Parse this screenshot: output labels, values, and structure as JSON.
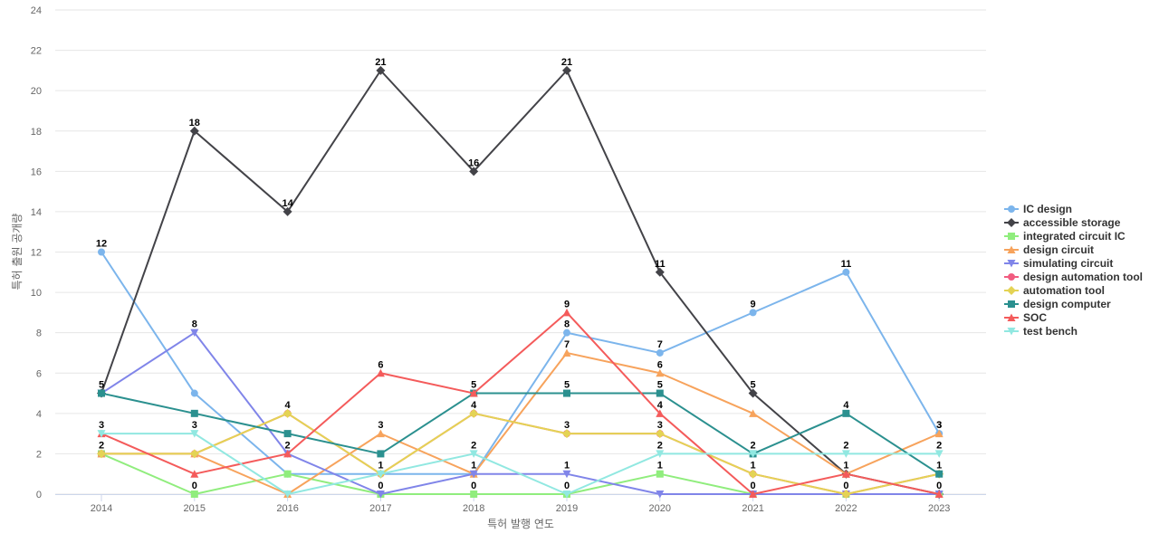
{
  "chart_data": {
    "type": "line",
    "title": "",
    "xlabel": "특허 발행 연도",
    "ylabel": "특허 출원 공개량",
    "ylim": [
      0,
      24
    ],
    "yticks": [
      0,
      2,
      4,
      6,
      8,
      10,
      12,
      14,
      16,
      18,
      20,
      22,
      24
    ],
    "grid": true,
    "legend_position": "right",
    "categories": [
      "2014",
      "2015",
      "2016",
      "2017",
      "2018",
      "2019",
      "2020",
      "2021",
      "2022",
      "2023"
    ],
    "series": [
      {
        "name": "IC design",
        "color": "#7cb5ec",
        "marker": "circle",
        "values": [
          12,
          5,
          1,
          1,
          1,
          8,
          7,
          9,
          11,
          3
        ]
      },
      {
        "name": "accessible storage",
        "color": "#434348",
        "marker": "diamond",
        "values": [
          5,
          18,
          14,
          21,
          16,
          21,
          11,
          5,
          1,
          0
        ]
      },
      {
        "name": "integrated circuit IC",
        "color": "#90ed7d",
        "marker": "square",
        "values": [
          2,
          0,
          1,
          0,
          0,
          0,
          1,
          0,
          0,
          0
        ]
      },
      {
        "name": "design circuit",
        "color": "#f7a35c",
        "marker": "triangle",
        "values": [
          2,
          2,
          0,
          3,
          1,
          7,
          6,
          4,
          1,
          3
        ]
      },
      {
        "name": "simulating circuit",
        "color": "#8085e9",
        "marker": "triangle-down",
        "values": [
          5,
          8,
          2,
          0,
          1,
          1,
          0,
          0,
          0,
          0
        ]
      },
      {
        "name": "design automation tool",
        "color": "#f15c80",
        "marker": "circle",
        "values": [
          2,
          2,
          4,
          1,
          4,
          3,
          3,
          1,
          0,
          1
        ]
      },
      {
        "name": "automation tool",
        "color": "#e4d354",
        "marker": "diamond",
        "values": [
          2,
          2,
          4,
          1,
          4,
          3,
          3,
          1,
          0,
          1
        ]
      },
      {
        "name": "design computer",
        "color": "#2b908f",
        "marker": "square",
        "values": [
          5,
          4,
          3,
          2,
          5,
          5,
          5,
          2,
          4,
          1
        ]
      },
      {
        "name": "SOC",
        "color": "#f45b5b",
        "marker": "triangle",
        "values": [
          3,
          1,
          2,
          6,
          5,
          9,
          4,
          0,
          1,
          0
        ]
      },
      {
        "name": "test bench",
        "color": "#91e8e1",
        "marker": "triangle-down",
        "values": [
          3,
          3,
          0,
          1,
          2,
          0,
          2,
          2,
          2,
          2
        ]
      }
    ],
    "labeled_points": [
      {
        "series": 0,
        "index": 0
      },
      {
        "series": 0,
        "index": 5
      },
      {
        "series": 0,
        "index": 6
      },
      {
        "series": 0,
        "index": 7
      },
      {
        "series": 0,
        "index": 8
      },
      {
        "series": 0,
        "index": 9
      },
      {
        "series": 1,
        "index": 0
      },
      {
        "series": 1,
        "index": 1
      },
      {
        "series": 1,
        "index": 2
      },
      {
        "series": 1,
        "index": 3
      },
      {
        "series": 1,
        "index": 4
      },
      {
        "series": 1,
        "index": 5
      },
      {
        "series": 1,
        "index": 6
      },
      {
        "series": 1,
        "index": 7
      },
      {
        "series": 1,
        "index": 8
      },
      {
        "series": 2,
        "index": 0
      },
      {
        "series": 2,
        "index": 1
      },
      {
        "series": 2,
        "index": 3
      },
      {
        "series": 2,
        "index": 4
      },
      {
        "series": 2,
        "index": 5
      },
      {
        "series": 2,
        "index": 6
      },
      {
        "series": 2,
        "index": 7
      },
      {
        "series": 2,
        "index": 8
      },
      {
        "series": 3,
        "index": 3
      },
      {
        "series": 3,
        "index": 5
      },
      {
        "series": 3,
        "index": 6
      },
      {
        "series": 3,
        "index": 9
      },
      {
        "series": 4,
        "index": 1
      },
      {
        "series": 4,
        "index": 2
      },
      {
        "series": 4,
        "index": 4
      },
      {
        "series": 4,
        "index": 5
      },
      {
        "series": 5,
        "index": 2
      },
      {
        "series": 5,
        "index": 3
      },
      {
        "series": 5,
        "index": 4
      },
      {
        "series": 5,
        "index": 5
      },
      {
        "series": 5,
        "index": 6
      },
      {
        "series": 5,
        "index": 7
      },
      {
        "series": 5,
        "index": 9
      },
      {
        "series": 7,
        "index": 4
      },
      {
        "series": 7,
        "index": 5
      },
      {
        "series": 7,
        "index": 6
      },
      {
        "series": 7,
        "index": 8
      },
      {
        "series": 8,
        "index": 3
      },
      {
        "series": 8,
        "index": 5
      },
      {
        "series": 8,
        "index": 6
      },
      {
        "series": 8,
        "index": 9
      },
      {
        "series": 9,
        "index": 0
      },
      {
        "series": 9,
        "index": 1
      },
      {
        "series": 9,
        "index": 4
      },
      {
        "series": 9,
        "index": 6
      },
      {
        "series": 9,
        "index": 7
      },
      {
        "series": 9,
        "index": 8
      },
      {
        "series": 9,
        "index": 9
      }
    ]
  }
}
